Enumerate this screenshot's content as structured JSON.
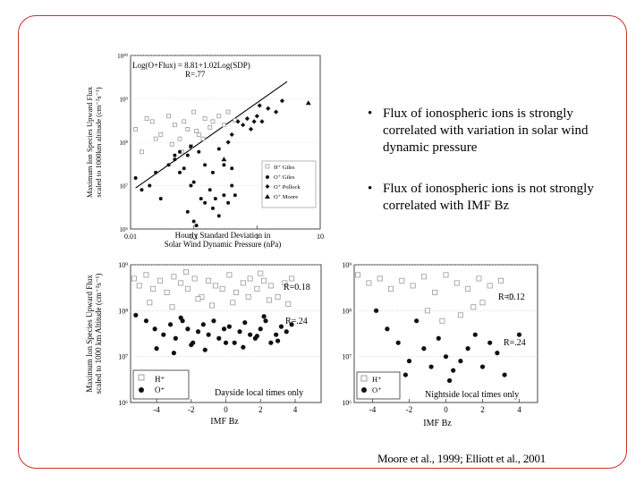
{
  "bullets": [
    {
      "marker": "•",
      "text": "Flux of ionospheric ions is strongly correlated with variation in solar wind dynamic pressure"
    },
    {
      "marker": "•",
      "text": "Flux of ionospheric ions is not strongly correlated with IMF Bz"
    }
  ],
  "citation": "Moore et al., 1999; Elliott et al., 2001",
  "chart_data": [
    {
      "type": "scatter",
      "id": "top",
      "annotation": "Log(O+Flux) = 8.81+1.02Log(SDP)",
      "r_label": "R=.77",
      "xlabel_line1": "Hourly Standard Deviation in",
      "xlabel_line2": "Solar Wind Dynamic Pressure (nPa)",
      "ylabel_line1": "Maximum Ion Species Upward Flux",
      "ylabel_line2": "scaled to 1000km altitude (cm⁻²s⁻¹)",
      "xscale": "log",
      "yscale": "log",
      "xlim": [
        0.01,
        10
      ],
      "ylim": [
        1000000,
        10000000000
      ],
      "xticks": [
        {
          "v": 0.01,
          "label": "0.01"
        },
        {
          "v": 0.1,
          "label": "0.1"
        },
        {
          "v": 1,
          "label": "1"
        },
        {
          "v": 10,
          "label": "10"
        }
      ],
      "yticks": [
        {
          "v": 1000000,
          "label": "10⁶"
        },
        {
          "v": 10000000,
          "label": "10⁷"
        },
        {
          "v": 100000000,
          "label": "10⁸"
        },
        {
          "v": 1000000000,
          "label": "10⁹"
        },
        {
          "v": 10000000000,
          "label": "10¹⁰"
        }
      ],
      "fit": {
        "x": [
          0.012,
          3.0
        ],
        "y": [
          8800000,
          2500000000
        ]
      },
      "legend": [
        "H⁺ Giles",
        "O⁺ Giles",
        "O⁺ Pollock",
        "O⁺ Moore"
      ],
      "series": [
        {
          "name": "H⁺ Giles",
          "marker": "open-square",
          "x": [
            0.012,
            0.018,
            0.022,
            0.03,
            0.04,
            0.05,
            0.06,
            0.07,
            0.08,
            0.1,
            0.12,
            0.15,
            0.2,
            0.25,
            0.3,
            0.015,
            0.025,
            0.045,
            0.065,
            0.09,
            0.11,
            0.14,
            0.18,
            0.35,
            0.45
          ],
          "y": [
            200000000,
            350000000,
            300000000,
            150000000,
            400000000,
            250000000,
            120000000,
            300000000,
            200000000,
            500000000,
            150000000,
            350000000,
            300000000,
            400000000,
            250000000,
            60000000,
            120000000,
            90000000,
            60000000,
            80000000,
            180000000,
            120000000,
            220000000,
            500000000,
            320000000
          ]
        },
        {
          "name": "O⁺ Giles",
          "marker": "filled-circle",
          "x": [
            0.012,
            0.015,
            0.02,
            0.025,
            0.03,
            0.04,
            0.05,
            0.06,
            0.07,
            0.08,
            0.09,
            0.1,
            0.12,
            0.13,
            0.15,
            0.18,
            0.2,
            0.22,
            0.25,
            0.3,
            0.35,
            0.4,
            0.45,
            0.06,
            0.08,
            0.1,
            0.11,
            0.2,
            0.3,
            0.05,
            0.09,
            0.15,
            0.25,
            0.4
          ],
          "y": [
            15000000,
            8000000,
            10000000,
            20000000,
            5000000,
            30000000,
            40000000,
            60000000,
            25000000,
            50000000,
            10000000,
            12000000,
            60000000,
            5000000,
            4000000,
            8000000,
            3000000,
            5000000,
            2000000,
            6000000,
            4000000,
            10000000,
            6000000,
            20000000,
            2500000,
            1500000,
            1200000,
            20000000,
            30000000,
            50000000,
            80000000,
            30000000,
            70000000,
            25000000
          ]
        },
        {
          "name": "O⁺ Pollock",
          "marker": "filled-diamond",
          "x": [
            0.4,
            0.5,
            0.6,
            0.7,
            0.8,
            0.9,
            1.0,
            1.2,
            1.5,
            2.0,
            2.5,
            0.35,
            1.1
          ],
          "y": [
            150000000,
            300000000,
            250000000,
            350000000,
            200000000,
            300000000,
            400000000,
            300000000,
            600000000,
            500000000,
            900000000,
            100000000,
            700000000
          ]
        },
        {
          "name": "O⁺ Moore",
          "marker": "filled-triangle",
          "x": [
            0.3,
            6.5
          ],
          "y": [
            40000000,
            800000000
          ]
        }
      ]
    },
    {
      "type": "scatter",
      "id": "bottom-left",
      "r_labels": [
        "R=0.18",
        "R=.24"
      ],
      "xlabel": "IMF Bz",
      "ylabel_line1": "Maximum Ion Species Upward Flux",
      "ylabel_line2": "scaled to 1000 km Altitude (cm⁻²s⁻¹)",
      "panel_label": "Dayside local times only",
      "xlim": [
        -5.5,
        5.5
      ],
      "ylim": [
        1000000,
        1000000000
      ],
      "yscale": "log",
      "xticks": [
        {
          "v": -4,
          "label": "-4"
        },
        {
          "v": -2,
          "label": "-2"
        },
        {
          "v": 0,
          "label": "0"
        },
        {
          "v": 2,
          "label": "2"
        },
        {
          "v": 4,
          "label": "4"
        }
      ],
      "yticks": [
        {
          "v": 1000000,
          "label": "10⁶"
        },
        {
          "v": 10000000,
          "label": "10⁷"
        },
        {
          "v": 100000000,
          "label": "10⁸"
        },
        {
          "v": 1000000000,
          "label": "10⁹"
        }
      ],
      "legend": [
        "H⁺",
        "O⁺"
      ],
      "series": [
        {
          "name": "H⁺",
          "marker": "open-square",
          "x": [
            -5.3,
            -5.0,
            -4.6,
            -4.2,
            -3.8,
            -3.4,
            -3.0,
            -2.6,
            -2.2,
            -1.8,
            -1.4,
            -1.0,
            -0.6,
            -0.2,
            0.2,
            0.6,
            1.0,
            1.4,
            1.8,
            2.2,
            2.6,
            3.0,
            3.4,
            3.8,
            -4.4,
            -3.1,
            -1.6,
            -0.8,
            0.4,
            1.3,
            2.5,
            3.6,
            -2.3,
            2.0
          ],
          "y": [
            500000000,
            350000000,
            600000000,
            300000000,
            450000000,
            250000000,
            550000000,
            400000000,
            300000000,
            500000000,
            200000000,
            450000000,
            350000000,
            300000000,
            600000000,
            250000000,
            400000000,
            500000000,
            300000000,
            450000000,
            350000000,
            200000000,
            400000000,
            500000000,
            150000000,
            120000000,
            180000000,
            130000000,
            150000000,
            200000000,
            170000000,
            140000000,
            700000000,
            650000000
          ]
        },
        {
          "name": "O⁺",
          "marker": "filled-circle",
          "x": [
            -5.2,
            -4.6,
            -4.1,
            -3.6,
            -3.2,
            -2.9,
            -2.5,
            -2.2,
            -1.9,
            -1.6,
            -1.3,
            -1.0,
            -0.7,
            -0.4,
            -0.1,
            0.2,
            0.5,
            0.8,
            1.1,
            1.4,
            1.7,
            2.0,
            2.3,
            2.6,
            2.9,
            3.2,
            3.5,
            3.8,
            -4.0,
            -3.0,
            -2.0,
            -1.2,
            0.0,
            1.0,
            1.8,
            3.0,
            -2.6,
            2.2
          ],
          "y": [
            80000000,
            60000000,
            40000000,
            30000000,
            50000000,
            25000000,
            60000000,
            40000000,
            20000000,
            35000000,
            50000000,
            30000000,
            60000000,
            25000000,
            40000000,
            45000000,
            20000000,
            35000000,
            55000000,
            30000000,
            25000000,
            40000000,
            60000000,
            20000000,
            30000000,
            45000000,
            35000000,
            50000000,
            15000000,
            12000000,
            18000000,
            14000000,
            20000000,
            16000000,
            28000000,
            22000000,
            70000000,
            75000000
          ]
        }
      ]
    },
    {
      "type": "scatter",
      "id": "bottom-right",
      "r_labels": [
        "R=0.12",
        "R=.24"
      ],
      "xlabel": "IMF Bz",
      "panel_label": "Nightside local times only",
      "xlim": [
        -5,
        5
      ],
      "ylim": [
        1000000,
        1000000000
      ],
      "yscale": "log",
      "xticks": [
        {
          "v": -4,
          "label": "-4"
        },
        {
          "v": -2,
          "label": "-2"
        },
        {
          "v": 0,
          "label": "0"
        },
        {
          "v": 2,
          "label": "2"
        },
        {
          "v": 4,
          "label": "4"
        }
      ],
      "yticks": [
        {
          "v": 1000000,
          "label": "10⁶"
        },
        {
          "v": 10000000,
          "label": "10⁷"
        },
        {
          "v": 100000000,
          "label": "10⁸"
        },
        {
          "v": 1000000000,
          "label": "10⁹"
        }
      ],
      "legend": [
        "H⁺",
        "O⁺"
      ],
      "series": [
        {
          "name": "H⁺",
          "marker": "open-square",
          "x": [
            -4.8,
            -4.2,
            -3.6,
            -3.0,
            -2.4,
            -1.8,
            -1.2,
            -0.6,
            0.0,
            0.6,
            1.2,
            1.8,
            2.4,
            3.0,
            -1.0,
            0.8,
            1.5,
            2.0,
            3.5,
            -0.2
          ],
          "y": [
            600000000,
            400000000,
            500000000,
            300000000,
            450000000,
            350000000,
            550000000,
            250000000,
            600000000,
            400000000,
            300000000,
            500000000,
            350000000,
            450000000,
            100000000,
            80000000,
            120000000,
            150000000,
            200000000,
            60000000
          ]
        },
        {
          "name": "O⁺",
          "marker": "filled-circle",
          "x": [
            -3.8,
            -3.2,
            -2.6,
            -2.0,
            -1.6,
            -1.2,
            -0.8,
            -0.4,
            0.0,
            0.4,
            0.8,
            1.2,
            1.6,
            2.0,
            2.4,
            2.8,
            3.2,
            4.0,
            -2.2,
            0.2
          ],
          "y": [
            100000000,
            40000000,
            20000000,
            8000000,
            60000000,
            15000000,
            6000000,
            25000000,
            10000000,
            5000000,
            8000000,
            15000000,
            30000000,
            6000000,
            20000000,
            12000000,
            4000000,
            30000000,
            4000000,
            3000000
          ]
        }
      ]
    }
  ]
}
